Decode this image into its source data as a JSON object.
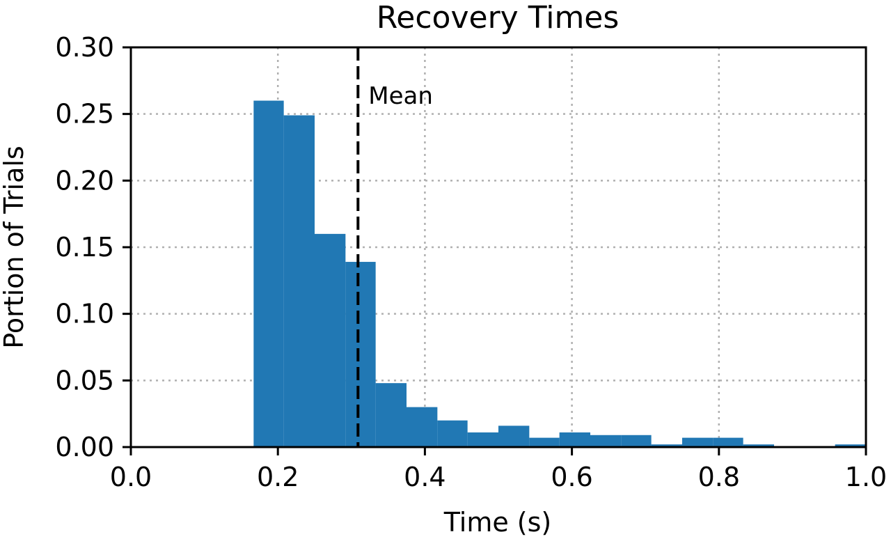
{
  "chart_data": {
    "type": "bar",
    "title": "Recovery Times",
    "xlabel": "Time (s)",
    "ylabel": "Portion of Trials",
    "xlim": [
      0.0,
      1.0
    ],
    "ylim": [
      0.0,
      0.3
    ],
    "x_ticks": [
      "0.0",
      "0.2",
      "0.4",
      "0.6",
      "0.8",
      "1.0"
    ],
    "y_ticks": [
      "0.00",
      "0.05",
      "0.10",
      "0.15",
      "0.20",
      "0.25",
      "0.30"
    ],
    "grid": true,
    "bar_color": "#2178b4",
    "bins": [
      {
        "x0": 0.167,
        "x1": 0.208,
        "value": 0.26
      },
      {
        "x0": 0.208,
        "x1": 0.25,
        "value": 0.249
      },
      {
        "x0": 0.25,
        "x1": 0.292,
        "value": 0.16
      },
      {
        "x0": 0.292,
        "x1": 0.333,
        "value": 0.139
      },
      {
        "x0": 0.333,
        "x1": 0.375,
        "value": 0.048
      },
      {
        "x0": 0.375,
        "x1": 0.417,
        "value": 0.03
      },
      {
        "x0": 0.417,
        "x1": 0.458,
        "value": 0.02
      },
      {
        "x0": 0.458,
        "x1": 0.5,
        "value": 0.011
      },
      {
        "x0": 0.5,
        "x1": 0.542,
        "value": 0.016
      },
      {
        "x0": 0.542,
        "x1": 0.583,
        "value": 0.007
      },
      {
        "x0": 0.583,
        "x1": 0.625,
        "value": 0.011
      },
      {
        "x0": 0.625,
        "x1": 0.667,
        "value": 0.009
      },
      {
        "x0": 0.667,
        "x1": 0.708,
        "value": 0.009
      },
      {
        "x0": 0.708,
        "x1": 0.75,
        "value": 0.002
      },
      {
        "x0": 0.75,
        "x1": 0.792,
        "value": 0.007
      },
      {
        "x0": 0.792,
        "x1": 0.833,
        "value": 0.007
      },
      {
        "x0": 0.833,
        "x1": 0.875,
        "value": 0.002
      },
      {
        "x0": 0.958,
        "x1": 1.0,
        "value": 0.002
      }
    ],
    "mean_line": {
      "x": 0.309,
      "label": "Mean"
    }
  }
}
